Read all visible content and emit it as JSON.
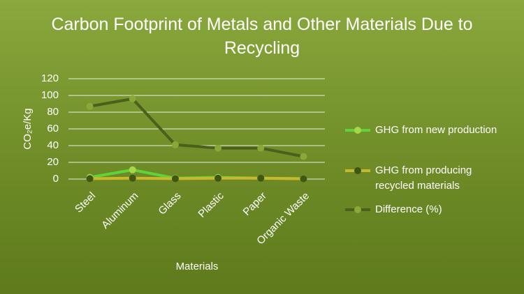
{
  "chart_data": {
    "type": "line",
    "title": "Carbon Footprint of Metals and Other Materials Due to Recycling",
    "x_label": "Materials",
    "y_label": "CO₂e/Kg",
    "categories": [
      "Steel",
      "Aluminum",
      "Glass",
      "Plastic",
      "Paper",
      "Organic Waste"
    ],
    "series": [
      {
        "name": "GHG from new production",
        "color": "#5fd43a",
        "marker_color": "#a6d64a",
        "values": [
          2,
          11,
          1,
          2,
          1,
          0.5
        ]
      },
      {
        "name": "GHG from producing recycled materials",
        "color": "#c8b82e",
        "marker_color": "#3e5714",
        "values": [
          0.5,
          1,
          0.5,
          1,
          1,
          0.3
        ]
      },
      {
        "name": "Difference (%)",
        "color": "#4a601c",
        "marker_color": "#8aa83a",
        "values": [
          87,
          96,
          41,
          37,
          37,
          27
        ]
      }
    ],
    "ylim": [
      0,
      120
    ],
    "yticks": [
      0,
      20,
      40,
      60,
      80,
      100,
      120
    ],
    "grid": true,
    "legend": "right"
  }
}
